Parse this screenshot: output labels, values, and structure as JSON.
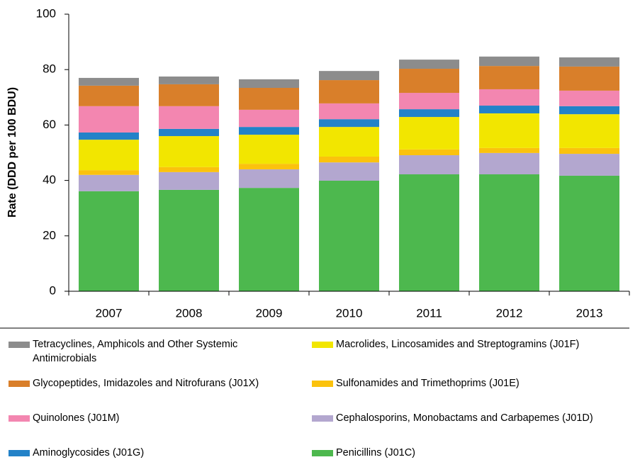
{
  "chart_data": {
    "type": "stacked_bar",
    "y_label": "Rate (DDD per 100 BDU)",
    "categories": [
      "2007",
      "2008",
      "2009",
      "2010",
      "2011",
      "2012",
      "2013"
    ],
    "ylim": [
      0,
      100
    ],
    "yticks": [
      0,
      20,
      40,
      60,
      80,
      100
    ],
    "grid": false,
    "series": [
      {
        "name": "Penicillins (J01C)",
        "color": "#4db84e",
        "values": [
          36.1,
          36.6,
          37.3,
          39.9,
          42.2,
          42.2,
          41.7
        ]
      },
      {
        "name": "Cephalosporins, Monobactams and Carbapemes (J01D)",
        "color": "#b3a7cf",
        "values": [
          5.9,
          6.4,
          6.7,
          6.6,
          6.9,
          7.7,
          7.9
        ]
      },
      {
        "name": "Sulfonamides and Trimethoprims (J01E)",
        "color": "#fbc20d",
        "values": [
          1.7,
          1.8,
          2.0,
          2.1,
          2.1,
          1.8,
          2.1
        ]
      },
      {
        "name": "Macrolides, Lincosamides and Streptogramins (J01F)",
        "color": "#f2e600",
        "values": [
          11.0,
          11.2,
          10.5,
          10.7,
          11.7,
          12.5,
          12.2
        ]
      },
      {
        "name": "Aminoglycosides (J01G)",
        "color": "#2382c8",
        "values": [
          2.6,
          2.6,
          2.8,
          2.8,
          2.8,
          2.8,
          2.9
        ]
      },
      {
        "name": "Quinolones (J01M)",
        "color": "#f386b0",
        "values": [
          9.5,
          8.2,
          6.2,
          5.7,
          5.9,
          5.9,
          5.6
        ]
      },
      {
        "name": "Glycopeptides, Imidazoles and Nitrofurans (J01X)",
        "color": "#d97f2a",
        "values": [
          7.4,
          7.9,
          7.9,
          8.4,
          8.7,
          8.4,
          8.7
        ]
      },
      {
        "name": "Tetracyclines, Amphicols and Other Systemic Antimicrobials",
        "color": "#8c8c8c",
        "values": [
          2.8,
          2.8,
          3.1,
          3.3,
          3.3,
          3.4,
          3.3
        ]
      }
    ]
  }
}
